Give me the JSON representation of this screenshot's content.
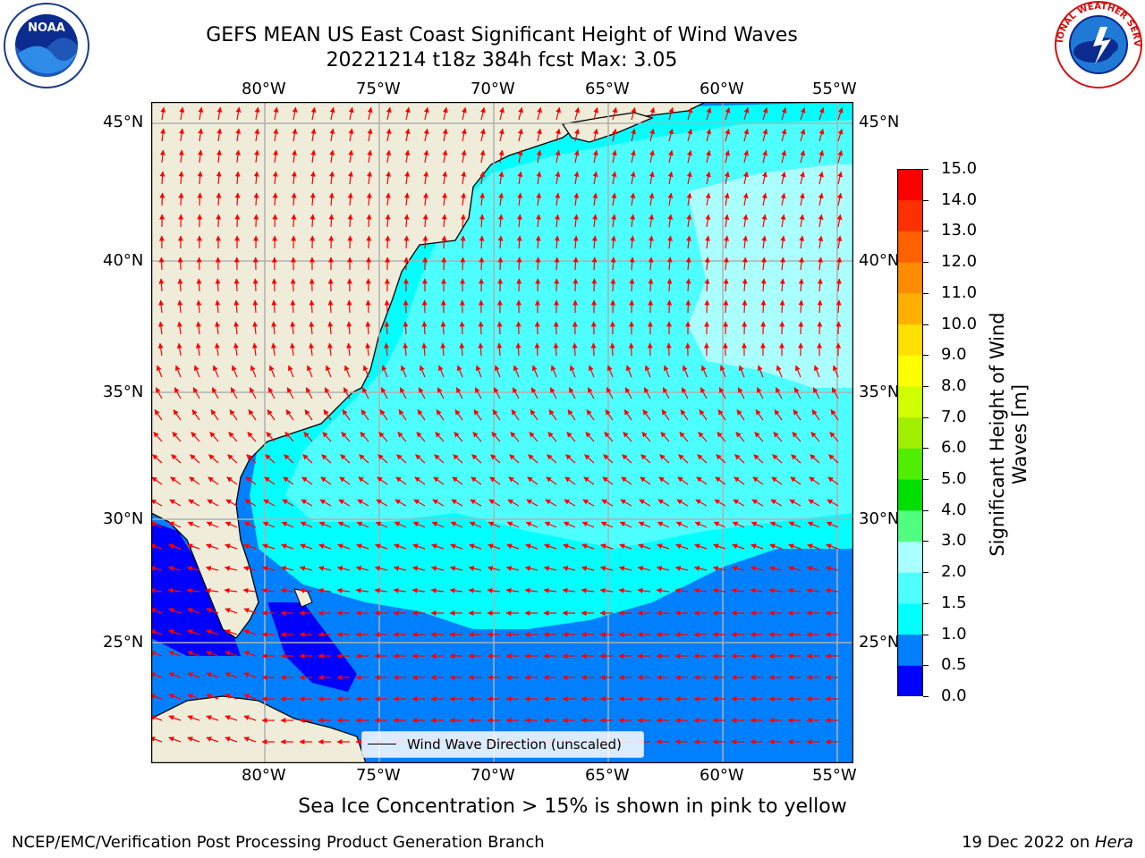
{
  "header": {
    "title_line1": "GEFS MEAN US East Coast Significant Height of Wind Waves",
    "title_line2": "20221214 t18z 384h fcst   Max: 3.05"
  },
  "logos": {
    "left": {
      "name": "noaa-logo",
      "text": "NOAA"
    },
    "right": {
      "name": "national-weather-service-logo",
      "text": "NATIONAL WEATHER SERVICE"
    }
  },
  "map": {
    "lon_ticks": [
      "80°W",
      "75°W",
      "70°W",
      "65°W",
      "60°W",
      "55°W"
    ],
    "lat_ticks": [
      "45°N",
      "40°N",
      "35°N",
      "30°N",
      "25°N"
    ],
    "colors": {
      "land": "#efedda",
      "coast": "#000000",
      "grid": "#b0b0b0",
      "arrow": "#ff0000"
    },
    "legend_label": "Wind Wave Direction (unscaled)"
  },
  "colorbar": {
    "label_line1": "Significant Height of Wind",
    "label_line2": "Waves [m]",
    "ticks": [
      "15.0",
      "14.0",
      "13.0",
      "12.0",
      "11.0",
      "10.0",
      "9.0",
      "8.0",
      "7.0",
      "6.0",
      "5.0",
      "4.0",
      "3.0",
      "2.0",
      "1.5",
      "1.0",
      "0.5",
      "0.0"
    ],
    "colors_bottom_to_top": [
      "#0000ff",
      "#0080ff",
      "#00ffff",
      "#4dffff",
      "#aaffff",
      "#50ff80",
      "#00e000",
      "#50ee00",
      "#a0ee00",
      "#d0ff00",
      "#ffff00",
      "#ffe000",
      "#ffb000",
      "#ff8c00",
      "#ff6000",
      "#ff3000",
      "#ff0000"
    ]
  },
  "footer": {
    "note": "Sea Ice Concentration > 15% is shown in pink to yellow",
    "left": "NCEP/EMC/Verification Post Processing Product Generation Branch",
    "right_date": "19 Dec 2022 on ",
    "right_host": "Hera"
  }
}
